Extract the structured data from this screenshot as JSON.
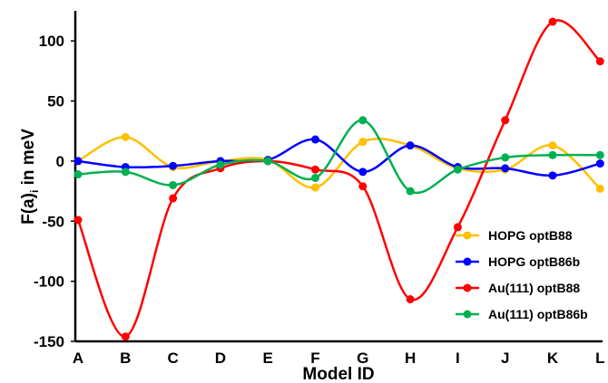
{
  "chart_data": {
    "type": "line",
    "smooth": true,
    "categories": [
      "A",
      "B",
      "C",
      "D",
      "E",
      "F",
      "G",
      "H",
      "I",
      "J",
      "K",
      "L"
    ],
    "xlabel": "Model ID",
    "ylabel_main": "F(a)",
    "ylabel_sub": "i",
    "ylabel_rest": " in meV",
    "ylim": [
      -150,
      125
    ],
    "yticks": [
      -150,
      -100,
      -50,
      0,
      50,
      100
    ],
    "grid": false,
    "legend_position": "right",
    "series": [
      {
        "name": "HOPG optB88",
        "color": "#FFC000",
        "values": [
          0,
          20,
          -5,
          0,
          1,
          -22,
          16,
          13,
          -6,
          -7,
          13,
          -23
        ]
      },
      {
        "name": "HOPG optB86b",
        "color": "#0000FF",
        "values": [
          0,
          -5,
          -4,
          0,
          1,
          18,
          -9,
          13,
          -5,
          -6,
          -12,
          -2
        ]
      },
      {
        "name": "Au(111) optB88",
        "color": "#FF0000",
        "values": [
          -49,
          -146,
          -31,
          -6,
          0,
          -7,
          -21,
          -115,
          -55,
          34,
          116,
          83
        ]
      },
      {
        "name": "Au(111) optB86b",
        "color": "#00B050",
        "values": [
          -11,
          -9,
          -20,
          -3,
          0,
          -14,
          34,
          -25,
          -7,
          3,
          5,
          5
        ]
      }
    ]
  }
}
